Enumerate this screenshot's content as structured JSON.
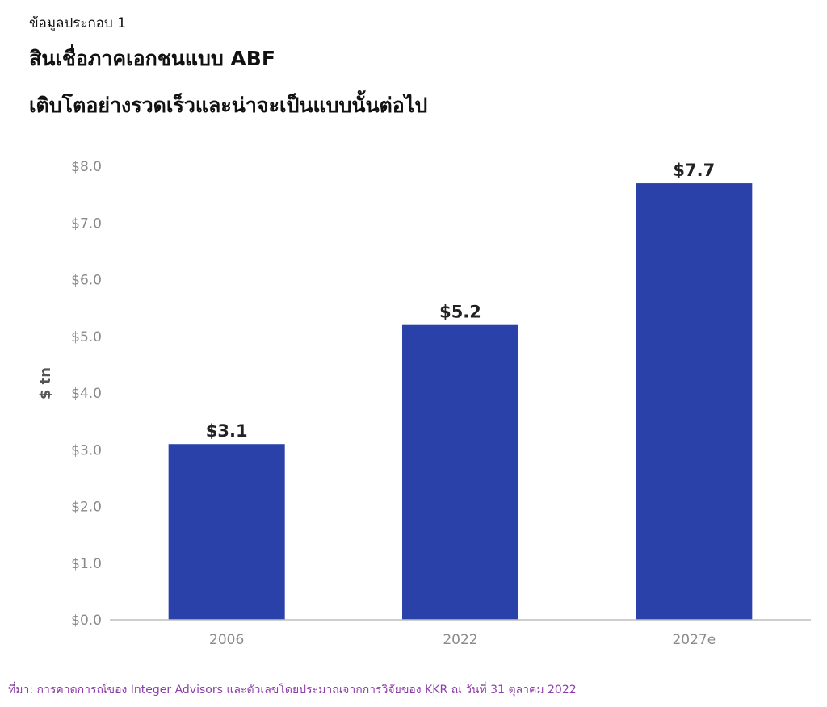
{
  "header": {
    "exhibit_label": "ข้อมูลประกอบ 1",
    "title_line1": "สินเชื่อภาคเอกชนแบบ ABF",
    "title_line2": "เติบโตอย่างรวดเร็วและน่าจะเป็นแบบนั้นต่อไป"
  },
  "chart_data": {
    "type": "bar",
    "title": "สินเชื่อภาคเอกชนแบบ ABF เติบโตอย่างรวดเร็วและน่าจะเป็นแบบนั้นต่อไป",
    "categories": [
      "2006",
      "2022",
      "2027e"
    ],
    "values": [
      3.1,
      5.2,
      7.7
    ],
    "data_labels": [
      "$3.1",
      "$5.2",
      "$7.7"
    ],
    "xlabel": "",
    "ylabel": "$ tn",
    "ylim": [
      0,
      8
    ],
    "yticks": [
      0,
      1,
      2,
      3,
      4,
      5,
      6,
      7,
      8
    ],
    "ytick_labels": [
      "$0.0",
      "$1.0",
      "$2.0",
      "$3.0",
      "$4.0",
      "$5.0",
      "$6.0",
      "$7.0",
      "$8.0"
    ],
    "grid": false,
    "legend": "none",
    "bar_color": "#2a41a9",
    "axis_color": "#bfbfbf",
    "tick_label_color": "#8a8a8a",
    "data_label_color": "#222222"
  },
  "footer": {
    "source": "ที่มา: การคาดการณ์ของ Integer Advisors และตัวเลขโดยประมาณจากการวิจัยของ KKR ณ วันที่ 31 ตุลาคม 2022"
  }
}
